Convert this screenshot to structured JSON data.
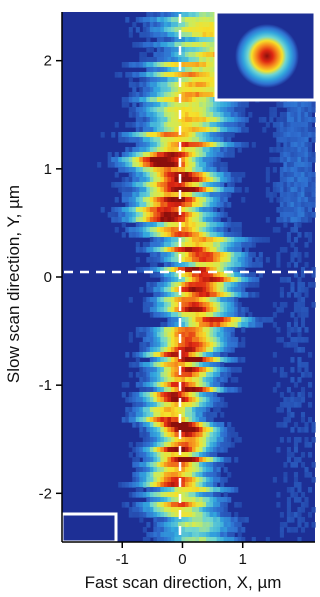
{
  "chart_data": {
    "type": "heatmap",
    "title": "",
    "xlabel": "Fast scan direction, X, µm",
    "ylabel": "Slow scan direction, Y, µm",
    "xlim": [
      -2.0,
      2.2
    ],
    "ylim": [
      -2.45,
      2.45
    ],
    "x_ticks": [
      -1,
      0,
      1
    ],
    "x_tick_labels": [
      "-1",
      "0",
      "1"
    ],
    "y_ticks": [
      2,
      1,
      0,
      -1,
      -2
    ],
    "y_tick_labels": [
      "2",
      "1",
      "0",
      "-1",
      "-2"
    ],
    "guide_lines": {
      "x": 0,
      "y": 0,
      "style": "dashed",
      "color": "#ffffff"
    },
    "colormap": [
      "#1d2f95",
      "#2f6fd0",
      "#33a8de",
      "#6fd6d0",
      "#c9ec5e",
      "#f6e02a",
      "#f68a1d",
      "#de2713",
      "#8b0f0c"
    ],
    "value_range": [
      0,
      1
    ],
    "peak_track": [
      {
        "y": 2.3,
        "x": 0.45,
        "amp": 0.55,
        "width": 0.7
      },
      {
        "y": 1.9,
        "x": 0.35,
        "amp": 0.65,
        "width": 0.7
      },
      {
        "y": 1.5,
        "x": 0.1,
        "amp": 0.82,
        "width": 0.6
      },
      {
        "y": 1.1,
        "x": -0.15,
        "amp": 0.9,
        "width": 0.55
      },
      {
        "y": 0.7,
        "x": -0.2,
        "amp": 0.93,
        "width": 0.55
      },
      {
        "y": 0.3,
        "x": 0.2,
        "amp": 0.88,
        "width": 0.55
      },
      {
        "y": -0.1,
        "x": 0.35,
        "amp": 0.85,
        "width": 0.5
      },
      {
        "y": -0.5,
        "x": 0.3,
        "amp": 0.9,
        "width": 0.5
      },
      {
        "y": -0.9,
        "x": -0.05,
        "amp": 0.95,
        "width": 0.45
      },
      {
        "y": -1.3,
        "x": -0.1,
        "amp": 1.0,
        "width": 0.45
      },
      {
        "y": -1.7,
        "x": 0.0,
        "amp": 0.95,
        "width": 0.45
      },
      {
        "y": -2.1,
        "x": 0.05,
        "amp": 0.7,
        "width": 0.5
      },
      {
        "y": -2.45,
        "x": 0.05,
        "amp": 0.4,
        "width": 0.55
      }
    ],
    "inset": {
      "position": "top-right",
      "content": "circular focal spot"
    },
    "lower_left_box": {
      "position": "bottom-left"
    }
  }
}
